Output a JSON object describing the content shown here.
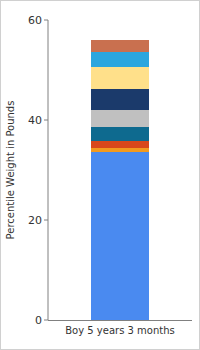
{
  "chart_data": {
    "type": "bar",
    "stacked": true,
    "ylabel": "Percentile Weight in Pounds",
    "categories": [
      "Boy 5 years 3 months"
    ],
    "series": [
      {
        "color": "#4a8af0",
        "values": [
          33.6
        ]
      },
      {
        "color": "#f29a1f",
        "values": [
          0.8
        ]
      },
      {
        "color": "#d9471b",
        "values": [
          1.4
        ]
      },
      {
        "color": "#0e6a8f",
        "values": [
          2.8
        ]
      },
      {
        "color": "#c0c0c0",
        "values": [
          3.4
        ]
      },
      {
        "color": "#1b3a6b",
        "values": [
          4.2
        ]
      },
      {
        "color": "#ffe08a",
        "values": [
          4.4
        ]
      },
      {
        "color": "#2ba6de",
        "values": [
          3.0
        ]
      },
      {
        "color": "#c9704f",
        "values": [
          2.4
        ]
      }
    ],
    "ylim": [
      0,
      60
    ],
    "yticks": [
      0,
      20,
      40,
      60
    ]
  }
}
